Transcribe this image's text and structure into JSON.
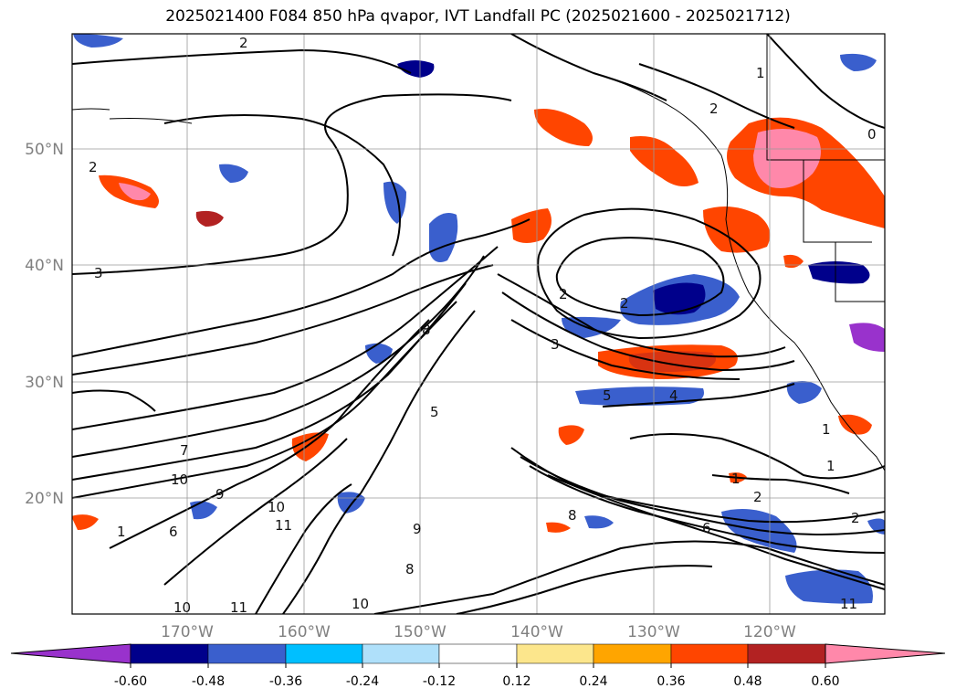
{
  "title": "2025021400 F084 850 hPa qvapor, IVT Landfall PC (2025021600 - 2025021712)",
  "lat_labels": [
    "50°N",
    "40°N",
    "30°N",
    "20°N"
  ],
  "lon_labels": [
    "170°W",
    "160°W",
    "150°W",
    "140°W",
    "130°W",
    "120°W"
  ],
  "colorbar": {
    "tick_labels": [
      "-0.60",
      "-0.48",
      "-0.36",
      "-0.24",
      "-0.12",
      "0.12",
      "0.24",
      "0.36",
      "0.48",
      "0.60"
    ],
    "colors": [
      "#9932cc",
      "#00008b",
      "#3a5fcd",
      "#00bfff",
      "#afe0fa",
      "#ffffff",
      "#fce68c",
      "#ffa500",
      "#ff4500",
      "#b22222",
      "#ff88aa"
    ]
  },
  "contour_labels": [
    "2",
    "2",
    "3",
    "8",
    "7",
    "10",
    "9",
    "6",
    "1",
    "10",
    "11",
    "10",
    "10",
    "11",
    "2",
    "2",
    "3",
    "5",
    "4",
    "5",
    "8",
    "9",
    "8",
    "1",
    "2",
    "6",
    "2",
    "1",
    "1",
    "11",
    "0",
    "1",
    "2"
  ]
}
